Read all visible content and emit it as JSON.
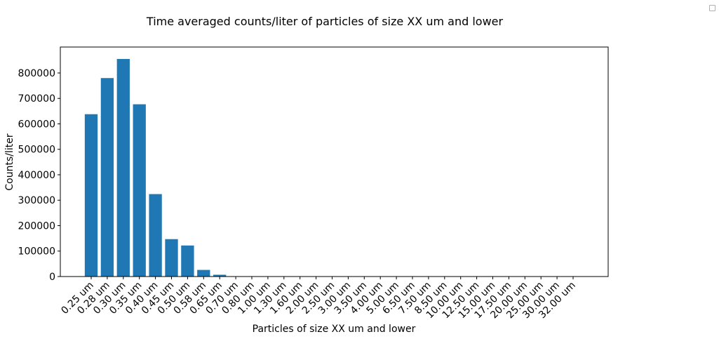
{
  "chart_data": {
    "type": "bar",
    "title": "Time averaged counts/liter of particles of size XX um and lower",
    "xlabel": "Particles of size XX um and lower",
    "ylabel": "Counts/liter",
    "categories": [
      "0.25 um",
      "0.28 um",
      "0.30 um",
      "0.35 um",
      "0.40 um",
      "0.45 um",
      "0.50 um",
      "0.58 um",
      "0.65 um",
      "0.70 um",
      "0.80 um",
      "1.00 um",
      "1.30 um",
      "1.60 um",
      "2.00 um",
      "2.50 um",
      "3.00 um",
      "3.50 um",
      "4.00 um",
      "5.00 um",
      "6.50 um",
      "7.50 um",
      "8.50 um",
      "10.00 um",
      "12.50 um",
      "15.00 um",
      "17.50 um",
      "20.00 um",
      "25.00 um",
      "30.00 um",
      "32.00 um"
    ],
    "values": [
      638000,
      780000,
      855000,
      677000,
      324000,
      147000,
      122000,
      26000,
      7000,
      1000,
      300,
      100,
      50,
      20,
      10,
      5,
      2,
      1,
      1,
      0,
      0,
      0,
      0,
      0,
      0,
      0,
      0,
      0,
      0,
      0,
      0
    ],
    "ylim": [
      0,
      902000
    ],
    "yticks": [
      0,
      100000,
      200000,
      300000,
      400000,
      500000,
      600000,
      700000,
      800000
    ],
    "bar_color": "#1f77b4",
    "grid": false,
    "legend": "top-right (empty)"
  }
}
